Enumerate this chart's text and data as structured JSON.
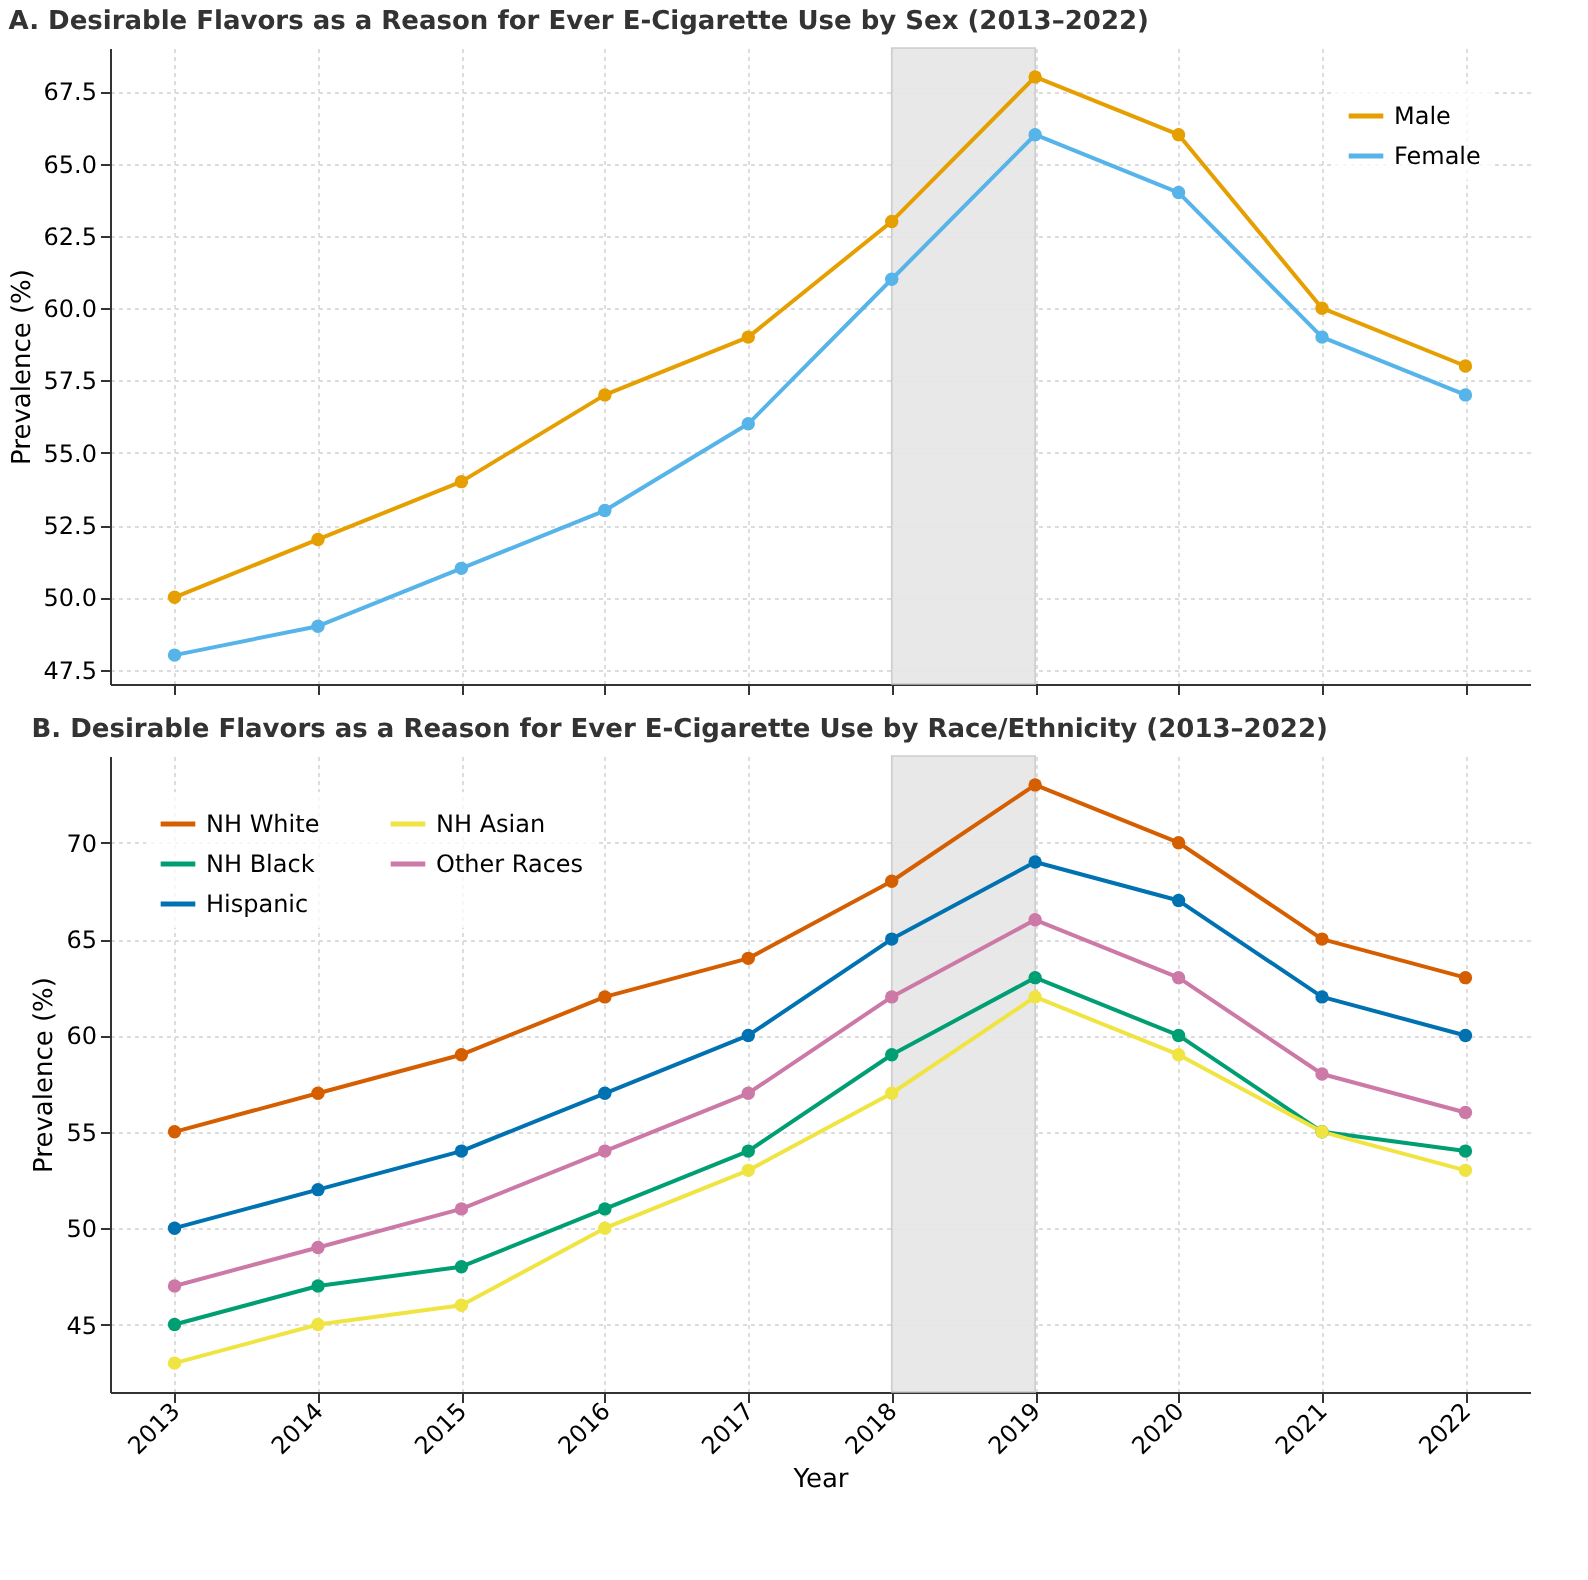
{
  "chart_data": [
    {
      "type": "line",
      "title": "A. Desirable Flavors as a Reason for Ever E-Cigarette Use by Sex (2013–2022)",
      "ylabel": "Prevalence (%)",
      "x": [
        2013,
        2014,
        2015,
        2016,
        2017,
        2018,
        2019,
        2020,
        2021,
        2022
      ],
      "xlim": [
        2012.55,
        2022.45
      ],
      "xticks": [
        2013,
        2014,
        2015,
        2016,
        2017,
        2018,
        2019,
        2020,
        2021,
        2022
      ],
      "ylim": [
        47,
        69
      ],
      "yticks": [
        {
          "value": 47.5,
          "label": "47.5"
        },
        {
          "value": 50,
          "label": "50.0"
        },
        {
          "value": 52.5,
          "label": "52.5"
        },
        {
          "value": 55,
          "label": "55.0"
        },
        {
          "value": 57.5,
          "label": "57.5"
        },
        {
          "value": 60,
          "label": "60.0"
        },
        {
          "value": 62.5,
          "label": "62.5"
        },
        {
          "value": 65,
          "label": "65.0"
        },
        {
          "value": 67.5,
          "label": "67.5"
        }
      ],
      "series": [
        {
          "name": "Male",
          "color": "#e69f00",
          "values": [
            50,
            52,
            54,
            57,
            59,
            63,
            68,
            66,
            60,
            58
          ]
        },
        {
          "name": "Female",
          "color": "#56b4e9",
          "values": [
            48,
            49,
            51,
            53,
            56,
            61,
            66,
            64,
            59,
            57
          ]
        }
      ],
      "bands": [
        {
          "axis": "x",
          "from": 2018,
          "to": 2019,
          "color": "#e6e6e6"
        }
      ],
      "grid": true,
      "legend": "top right",
      "marker": "circle",
      "line_style": "solid",
      "tick_labels": "y"
    },
    {
      "type": "line",
      "title": "B. Desirable Flavors as a Reason for Ever E-Cigarette Use by Race/Ethnicity (2013–2022)",
      "xlabel": "Year",
      "ylabel": "Prevalence (%)",
      "x": [
        2013,
        2014,
        2015,
        2016,
        2017,
        2018,
        2019,
        2020,
        2021,
        2022
      ],
      "xlim": [
        2012.55,
        2022.45
      ],
      "xticks": [
        2013,
        2014,
        2015,
        2016,
        2017,
        2018,
        2019,
        2020,
        2021,
        2022
      ],
      "ylim": [
        41.5,
        74.5
      ],
      "yticks": [
        45,
        50,
        55,
        60,
        65,
        70
      ],
      "series": [
        {
          "name": "NH White",
          "color": "#d55e00",
          "values": [
            55,
            57,
            59,
            62,
            64,
            68,
            73,
            70,
            65,
            63
          ]
        },
        {
          "name": "NH Black",
          "color": "#009e73",
          "values": [
            45,
            47,
            48,
            51,
            54,
            59,
            63,
            60,
            55,
            54
          ]
        },
        {
          "name": "Hispanic",
          "color": "#0072b2",
          "values": [
            50,
            52,
            54,
            57,
            60,
            65,
            69,
            67,
            62,
            60
          ]
        },
        {
          "name": "NH Asian",
          "color": "#f0e442",
          "values": [
            43,
            45,
            46,
            50,
            53,
            57,
            62,
            59,
            55,
            53
          ]
        },
        {
          "name": "Other Races",
          "color": "#cc79a7",
          "values": [
            47,
            49,
            51,
            54,
            57,
            62,
            66,
            63,
            58,
            56
          ]
        }
      ],
      "bands": [
        {
          "axis": "x",
          "from": 2018,
          "to": 2019,
          "color": "#e6e6e6"
        }
      ],
      "grid": true,
      "legend": "top left",
      "marker": "circle",
      "line_style": "solid"
    }
  ]
}
